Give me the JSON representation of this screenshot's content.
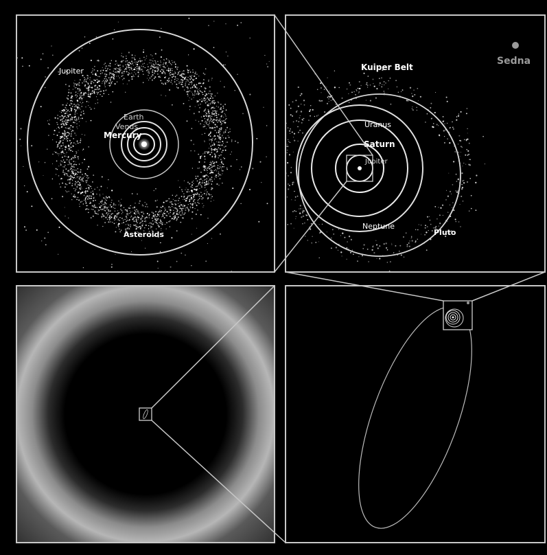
{
  "colors": {
    "background": "#000000",
    "frame": "#c8c8c8",
    "orbit": "#d9d9d9",
    "label": "#ffffff",
    "label_dim": "#cfcfcf",
    "sedna": "#9a9a9a"
  },
  "panels": {
    "inner_solar_system": {
      "labels": {
        "jupiter": "Jupiter",
        "earth": "Earth",
        "venus": "Venus",
        "mercury": "Mercury",
        "asteroids": "Asteroids"
      }
    },
    "outer_solar_system": {
      "labels": {
        "kuiper_belt": "Kuiper Belt",
        "sedna": "Sedna",
        "uranus": "Uranus",
        "saturn": "Saturn",
        "jupiter": "Jupiter",
        "neptune": "Neptune",
        "pluto": "Pluto"
      }
    },
    "sedna_orbit": {},
    "oort_cloud": {}
  }
}
